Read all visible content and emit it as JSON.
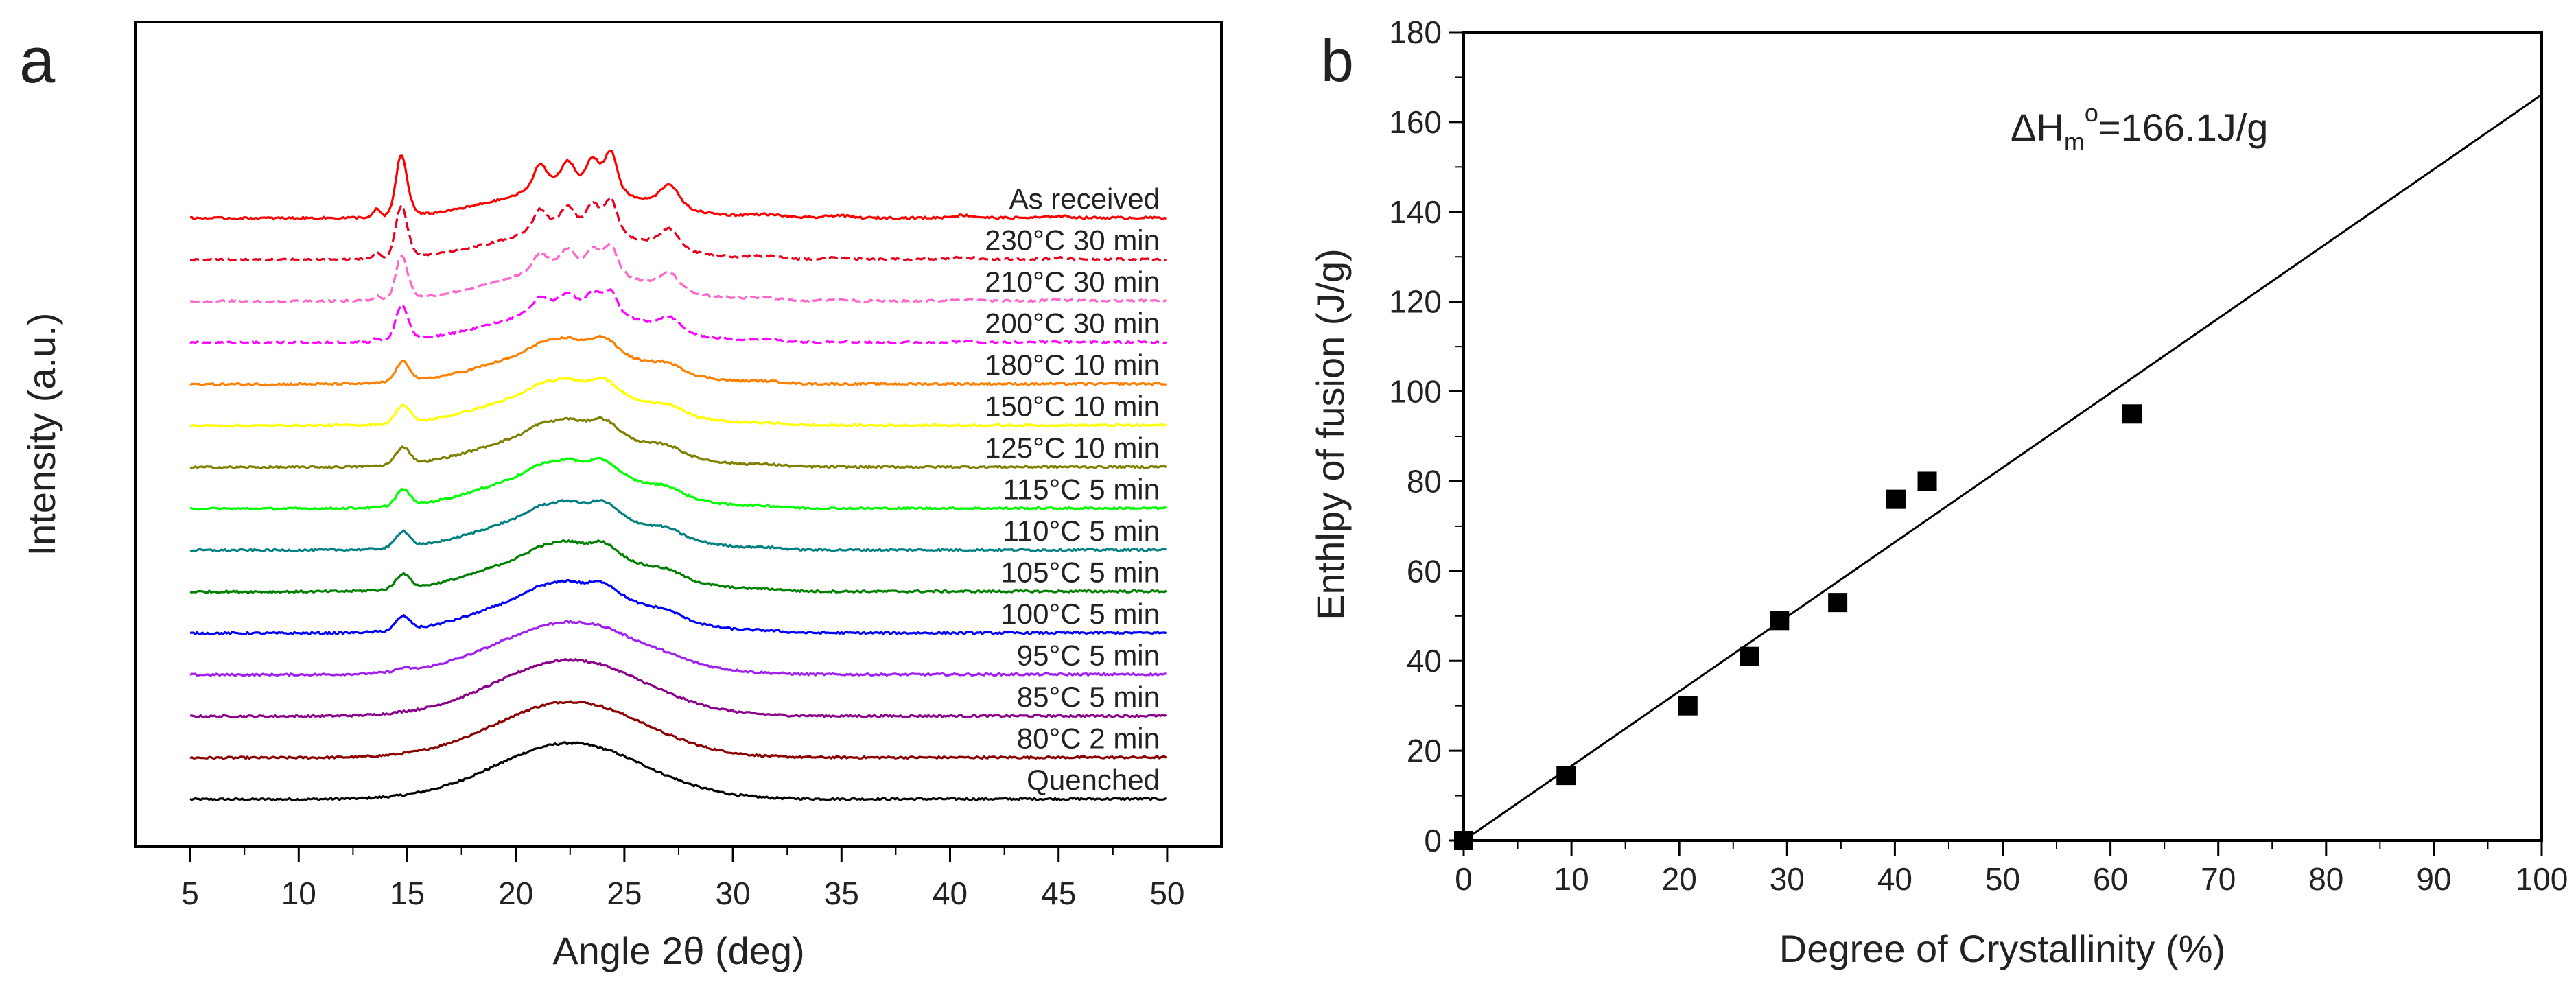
{
  "chart_data": [
    {
      "type": "line",
      "panel_label": "a",
      "xlabel": "Angle 2θ (deg)",
      "ylabel": "Intensity (a.u.)",
      "xlim": [
        2.5,
        52.5
      ],
      "xticks": [
        "5",
        "10",
        "15",
        "20",
        "25",
        "30",
        "35",
        "40",
        "45",
        "50"
      ],
      "x_tick_values": [
        5,
        10,
        15,
        20,
        25,
        30,
        35,
        40,
        45,
        50
      ],
      "y_unit": "relative intensity, offset per trace",
      "series": [
        {
          "name": "Quenched",
          "color": "#000000",
          "offset": 0,
          "amorphous": 0.68,
          "crystal": 0.0,
          "sharp": 0.0,
          "dash": false
        },
        {
          "name": "80°C 2 min",
          "color": "#8b0000",
          "offset": 1,
          "amorphous": 0.68,
          "crystal": 0.0,
          "sharp": 0.0,
          "dash": false
        },
        {
          "name": "85°C 5 min",
          "color": "#8b008b",
          "offset": 2,
          "amorphous": 0.68,
          "crystal": 0.02,
          "sharp": 0.0,
          "dash": false
        },
        {
          "name": "95°C 5 min",
          "color": "#a020f0",
          "offset": 3,
          "amorphous": 0.62,
          "crystal": 0.12,
          "sharp": 0.0,
          "dash": false
        },
        {
          "name": "100°C 5 min",
          "color": "#0000ff",
          "offset": 4,
          "amorphous": 0.55,
          "crystal": 0.55,
          "sharp": 0.0,
          "dash": false
        },
        {
          "name": "105°C 5 min",
          "color": "#008000",
          "offset": 5,
          "amorphous": 0.52,
          "crystal": 0.6,
          "sharp": 0.0,
          "dash": false
        },
        {
          "name": "110°C 5 min",
          "color": "#008080",
          "offset": 6,
          "amorphous": 0.5,
          "crystal": 0.65,
          "sharp": 0.0,
          "dash": false
        },
        {
          "name": "115°C 5 min",
          "color": "#00ff00",
          "offset": 7,
          "amorphous": 0.5,
          "crystal": 0.65,
          "sharp": 0.0,
          "dash": false
        },
        {
          "name": "125°C 10 min",
          "color": "#808000",
          "offset": 8,
          "amorphous": 0.48,
          "crystal": 0.7,
          "sharp": 0.0,
          "dash": false
        },
        {
          "name": "150°C 10 min",
          "color": "#ffff00",
          "offset": 9,
          "amorphous": 0.46,
          "crystal": 0.72,
          "sharp": 0.0,
          "dash": false
        },
        {
          "name": "180°C 10 min",
          "color": "#ff8000",
          "offset": 10,
          "amorphous": 0.44,
          "crystal": 0.8,
          "sharp": 0.0,
          "dash": false
        },
        {
          "name": "200°C 30 min",
          "color": "#ff00ff",
          "offset": 11,
          "amorphous": 0.4,
          "crystal": 0.9,
          "sharp": 0.4,
          "dash": true
        },
        {
          "name": "210°C 30 min",
          "color": "#ff66cc",
          "offset": 12,
          "amorphous": 0.38,
          "crystal": 0.95,
          "sharp": 0.6,
          "dash": true
        },
        {
          "name": "230°C 30 min",
          "color": "#e8001c",
          "offset": 13,
          "amorphous": 0.36,
          "crystal": 1.0,
          "sharp": 0.8,
          "dash": true
        },
        {
          "name": "As received",
          "color": "#ff0000",
          "offset": 14,
          "amorphous": 0.35,
          "crystal": 1.1,
          "sharp": 1.0,
          "dash": false
        }
      ]
    },
    {
      "type": "scatter",
      "panel_label": "b",
      "xlabel": "Degree of Crystallinity (%)",
      "ylabel": "Enthlpy of fusion (J/g)",
      "xlim": [
        0,
        100
      ],
      "ylim": [
        0,
        180
      ],
      "xticks": [
        "0",
        "10",
        "20",
        "30",
        "40",
        "50",
        "60",
        "70",
        "80",
        "90",
        "100"
      ],
      "yticks": [
        "0",
        "20",
        "40",
        "60",
        "80",
        "100",
        "120",
        "140",
        "160",
        "180"
      ],
      "points": [
        {
          "x": 0,
          "y": 0
        },
        {
          "x": 9.5,
          "y": 14.5
        },
        {
          "x": 20.8,
          "y": 30
        },
        {
          "x": 26.5,
          "y": 41
        },
        {
          "x": 29.3,
          "y": 49
        },
        {
          "x": 34.7,
          "y": 53
        },
        {
          "x": 40.1,
          "y": 76
        },
        {
          "x": 43,
          "y": 80
        },
        {
          "x": 62,
          "y": 95
        }
      ],
      "fit_line": {
        "x": [
          0,
          100
        ],
        "y": [
          0,
          166.1
        ]
      },
      "annotation": {
        "prefix": "ΔH",
        "sub": "m",
        "sup": "o",
        "text": "=166.1J/g"
      }
    }
  ]
}
